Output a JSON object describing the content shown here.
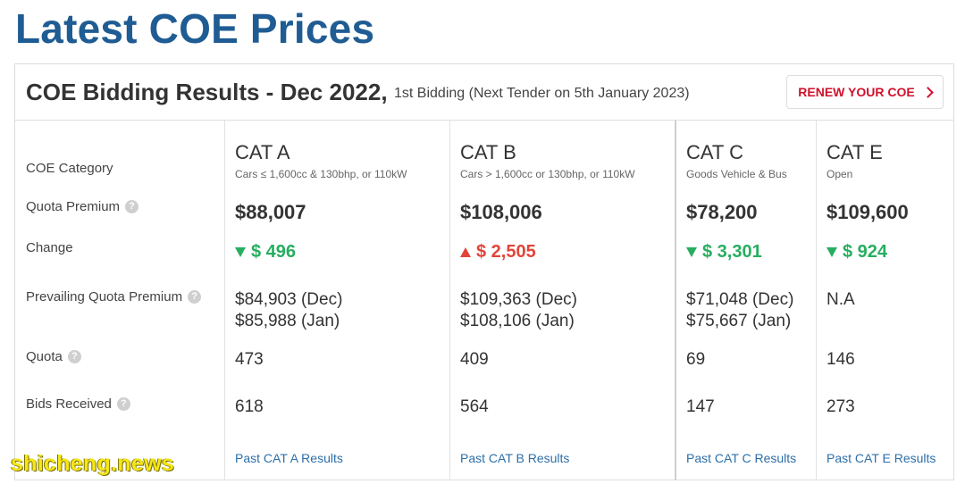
{
  "page_title": "Latest COE Prices",
  "card": {
    "title": "COE Bidding Results - Dec 2022,",
    "subtitle": "1st Bidding (Next Tender on 5th January 2023)",
    "renew_button": "RENEW YOUR COE",
    "accent_color": "#d0112b"
  },
  "row_labels": {
    "category": "COE Category",
    "quota_premium": "Quota Premium",
    "change": "Change",
    "prevailing": "Prevailing Quota Premium",
    "quota": "Quota",
    "bids": "Bids Received"
  },
  "categories": [
    {
      "name": "CAT A",
      "desc": "Cars ≤ 1,600cc & 130bhp, or 110kW",
      "premium": "$88,007",
      "change": "$ 496",
      "direction": "down",
      "pqp_dec": "$84,903 (Dec)",
      "pqp_jan": "$85,988 (Jan)",
      "quota": "473",
      "bids": "618",
      "link": "Past CAT A Results"
    },
    {
      "name": "CAT B",
      "desc": "Cars > 1,600cc or 130bhp, or 110kW",
      "premium": "$108,006",
      "change": "$ 2,505",
      "direction": "up",
      "pqp_dec": "$109,363 (Dec)",
      "pqp_jan": "$108,106 (Jan)",
      "quota": "409",
      "bids": "564",
      "link": "Past CAT B Results"
    },
    {
      "name": "CAT C",
      "desc": "Goods Vehicle & Bus",
      "premium": "$78,200",
      "change": "$ 3,301",
      "direction": "down",
      "pqp_dec": "$71,048 (Dec)",
      "pqp_jan": "$75,667 (Jan)",
      "quota": "69",
      "bids": "147",
      "link": "Past CAT C Results"
    },
    {
      "name": "CAT E",
      "desc": "Open",
      "premium": "$109,600",
      "change": "$ 924",
      "direction": "down",
      "pqp_dec": "N.A",
      "pqp_jan": "",
      "quota": "146",
      "bids": "273",
      "link": "Past CAT E Results"
    }
  ],
  "watermark": "shicheng.news"
}
